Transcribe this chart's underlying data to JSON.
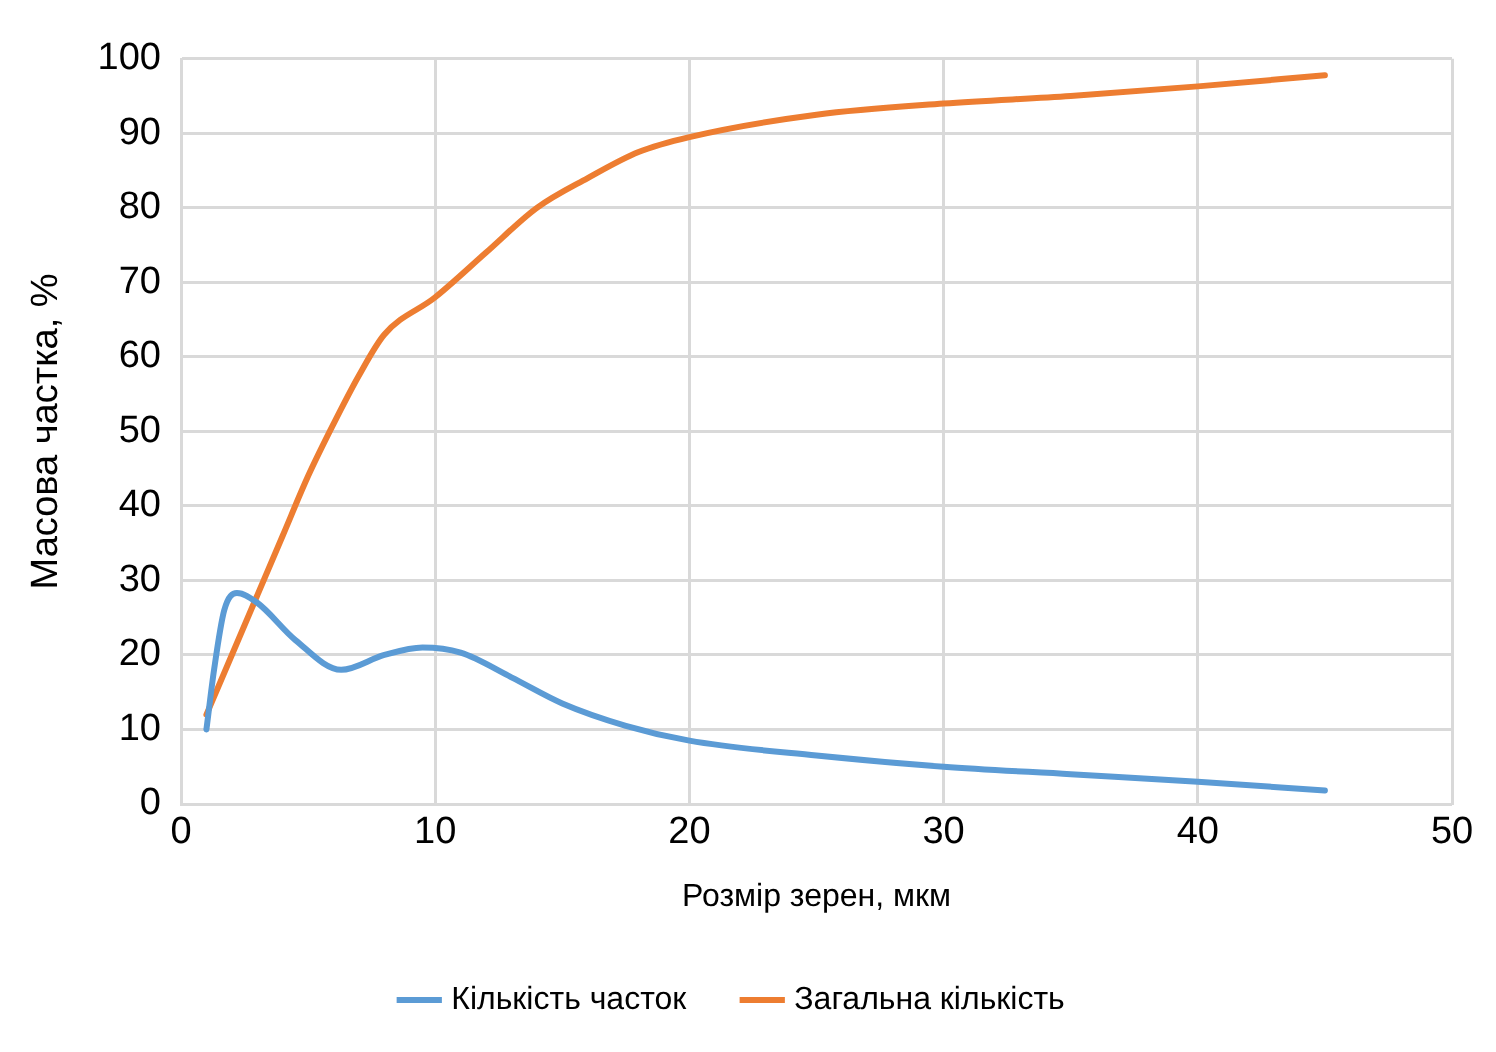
{
  "chart_data": {
    "type": "line",
    "xlabel": "Розмір зерен, мкм",
    "ylabel": "Масова частка, %",
    "xlim": [
      0,
      50
    ],
    "xticks": [
      0,
      10,
      20,
      30,
      40,
      50
    ],
    "ylim": [
      0,
      100
    ],
    "yticks": [
      0,
      10,
      20,
      30,
      40,
      50,
      60,
      70,
      80,
      90,
      100
    ],
    "grid": true,
    "legend": "bottom",
    "marker": "none",
    "line_style": "solid",
    "series": [
      {
        "name": "Кількість часток",
        "color": "#5b9bd5",
        "x": [
          1,
          1.3,
          1.7,
          2.2,
          3,
          4.5,
          6.3,
          8,
          9.5,
          11,
          13,
          15,
          17.5,
          20,
          25,
          30,
          35,
          40,
          45
        ],
        "values": [
          10,
          18,
          26,
          28.3,
          27,
          22,
          18,
          20,
          21,
          20.3,
          17,
          13.5,
          10.5,
          8.5,
          6.5,
          5,
          4,
          3,
          1.8
        ]
      },
      {
        "name": "Загальна кількість",
        "color": "#ed7d31",
        "x": [
          1,
          2,
          3,
          4,
          5,
          6,
          7,
          8,
          10,
          12,
          14,
          16,
          18,
          20,
          25,
          30,
          35,
          40,
          45
        ],
        "values": [
          12,
          20,
          28,
          36,
          44,
          51,
          57.5,
          63,
          68,
          74,
          80,
          84,
          87.5,
          89.5,
          92.5,
          94,
          95,
          96.3,
          97.8
        ]
      }
    ]
  }
}
